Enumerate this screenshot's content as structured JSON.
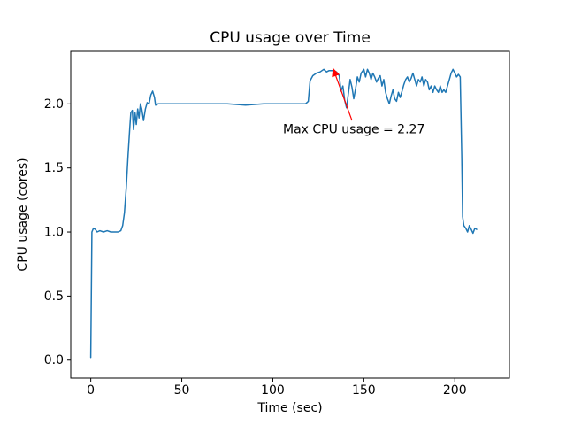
{
  "figure": {
    "background": "#ffffff"
  },
  "chart_data": {
    "type": "line",
    "title": "CPU usage over Time",
    "xlabel": "Time (sec)",
    "ylabel": "CPU usage (cores)",
    "xlim": [
      -11,
      230
    ],
    "ylim": [
      -0.14,
      2.41
    ],
    "grid": false,
    "legend": null,
    "xticks": {
      "values": [
        0,
        50,
        100,
        150,
        200
      ],
      "labels": [
        "0",
        "50",
        "100",
        "150",
        "200"
      ]
    },
    "yticks": {
      "values": [
        0.0,
        0.5,
        1.0,
        1.5,
        2.0
      ],
      "labels": [
        "0.0",
        "0.5",
        "1.0",
        "1.5",
        "2.0"
      ]
    },
    "line_color": "#1f77b4",
    "line_width": 1.5,
    "frame_color": "#000000",
    "series": [
      {
        "name": "CPU usage",
        "points": [
          [
            0,
            0.02
          ],
          [
            0.6,
            1.0
          ],
          [
            1.5,
            1.03
          ],
          [
            2.5,
            1.02
          ],
          [
            3.5,
            1.0
          ],
          [
            5,
            1.01
          ],
          [
            7,
            1.0
          ],
          [
            9,
            1.01
          ],
          [
            11,
            1.0
          ],
          [
            13,
            1.0
          ],
          [
            15,
            1.0
          ],
          [
            16.5,
            1.01
          ],
          [
            17.5,
            1.05
          ],
          [
            18.5,
            1.15
          ],
          [
            19.5,
            1.35
          ],
          [
            20.5,
            1.6
          ],
          [
            21.5,
            1.83
          ],
          [
            22,
            1.93
          ],
          [
            22.8,
            1.95
          ],
          [
            23.5,
            1.8
          ],
          [
            24.3,
            1.93
          ],
          [
            25,
            1.84
          ],
          [
            25.8,
            1.96
          ],
          [
            26.5,
            1.89
          ],
          [
            27.3,
            2.0
          ],
          [
            28,
            1.96
          ],
          [
            29,
            1.87
          ],
          [
            30,
            1.96
          ],
          [
            31,
            2.01
          ],
          [
            32,
            2.0
          ],
          [
            33,
            2.07
          ],
          [
            34,
            2.1
          ],
          [
            35,
            2.05
          ],
          [
            35.6,
            1.99
          ],
          [
            37,
            2.0
          ],
          [
            45,
            2.0
          ],
          [
            55,
            2.0
          ],
          [
            65,
            2.0
          ],
          [
            75,
            2.0
          ],
          [
            85,
            1.99
          ],
          [
            95,
            2.0
          ],
          [
            105,
            2.0
          ],
          [
            112,
            2.0
          ],
          [
            118,
            2.0
          ],
          [
            119.5,
            2.02
          ],
          [
            120.5,
            2.18
          ],
          [
            122,
            2.22
          ],
          [
            124,
            2.24
          ],
          [
            126,
            2.25
          ],
          [
            128,
            2.27
          ],
          [
            129.5,
            2.25
          ],
          [
            131,
            2.26
          ],
          [
            133,
            2.26
          ],
          [
            135,
            2.25
          ],
          [
            136.5,
            2.22
          ],
          [
            137.5,
            2.1
          ],
          [
            138.5,
            2.14
          ],
          [
            139.5,
            2.03
          ],
          [
            140.5,
            1.97
          ],
          [
            141.5,
            2.08
          ],
          [
            142.5,
            2.19
          ],
          [
            143.5,
            2.13
          ],
          [
            144.5,
            2.04
          ],
          [
            145.5,
            2.12
          ],
          [
            146.5,
            2.21
          ],
          [
            147.5,
            2.17
          ],
          [
            148.5,
            2.24
          ],
          [
            150,
            2.27
          ],
          [
            151,
            2.21
          ],
          [
            152,
            2.27
          ],
          [
            153,
            2.24
          ],
          [
            154,
            2.19
          ],
          [
            155,
            2.24
          ],
          [
            156,
            2.21
          ],
          [
            157,
            2.17
          ],
          [
            158,
            2.2
          ],
          [
            159,
            2.22
          ],
          [
            160,
            2.14
          ],
          [
            161,
            2.19
          ],
          [
            162,
            2.09
          ],
          [
            163,
            2.04
          ],
          [
            164,
            2.0
          ],
          [
            165,
            2.06
          ],
          [
            166,
            2.11
          ],
          [
            167,
            2.04
          ],
          [
            168,
            2.02
          ],
          [
            169,
            2.09
          ],
          [
            170,
            2.05
          ],
          [
            171,
            2.1
          ],
          [
            172,
            2.15
          ],
          [
            173,
            2.19
          ],
          [
            174,
            2.21
          ],
          [
            175,
            2.17
          ],
          [
            176,
            2.2
          ],
          [
            177,
            2.24
          ],
          [
            178,
            2.19
          ],
          [
            179,
            2.14
          ],
          [
            180,
            2.19
          ],
          [
            181,
            2.17
          ],
          [
            182,
            2.21
          ],
          [
            183,
            2.14
          ],
          [
            184,
            2.19
          ],
          [
            185,
            2.17
          ],
          [
            186,
            2.11
          ],
          [
            187,
            2.14
          ],
          [
            188,
            2.09
          ],
          [
            189,
            2.14
          ],
          [
            190,
            2.11
          ],
          [
            191,
            2.09
          ],
          [
            192,
            2.14
          ],
          [
            193,
            2.09
          ],
          [
            194,
            2.11
          ],
          [
            195,
            2.09
          ],
          [
            196,
            2.14
          ],
          [
            197,
            2.19
          ],
          [
            198,
            2.24
          ],
          [
            199,
            2.27
          ],
          [
            200,
            2.24
          ],
          [
            201,
            2.21
          ],
          [
            202,
            2.23
          ],
          [
            203,
            2.21
          ],
          [
            203.8,
            1.6
          ],
          [
            204.3,
            1.12
          ],
          [
            205,
            1.05
          ],
          [
            206,
            1.03
          ],
          [
            207,
            1.0
          ],
          [
            208,
            1.05
          ],
          [
            209,
            1.02
          ],
          [
            210,
            0.99
          ],
          [
            211,
            1.03
          ],
          [
            212,
            1.02
          ]
        ]
      }
    ],
    "annotation": {
      "text": "Max CPU usage = 2.27",
      "color": "#ff0000",
      "text_xy": [
        105.6,
        1.77
      ],
      "arrow_tail_xy": [
        143.5,
        1.87
      ],
      "arrow_tip_xy": [
        133.0,
        2.28
      ]
    }
  }
}
